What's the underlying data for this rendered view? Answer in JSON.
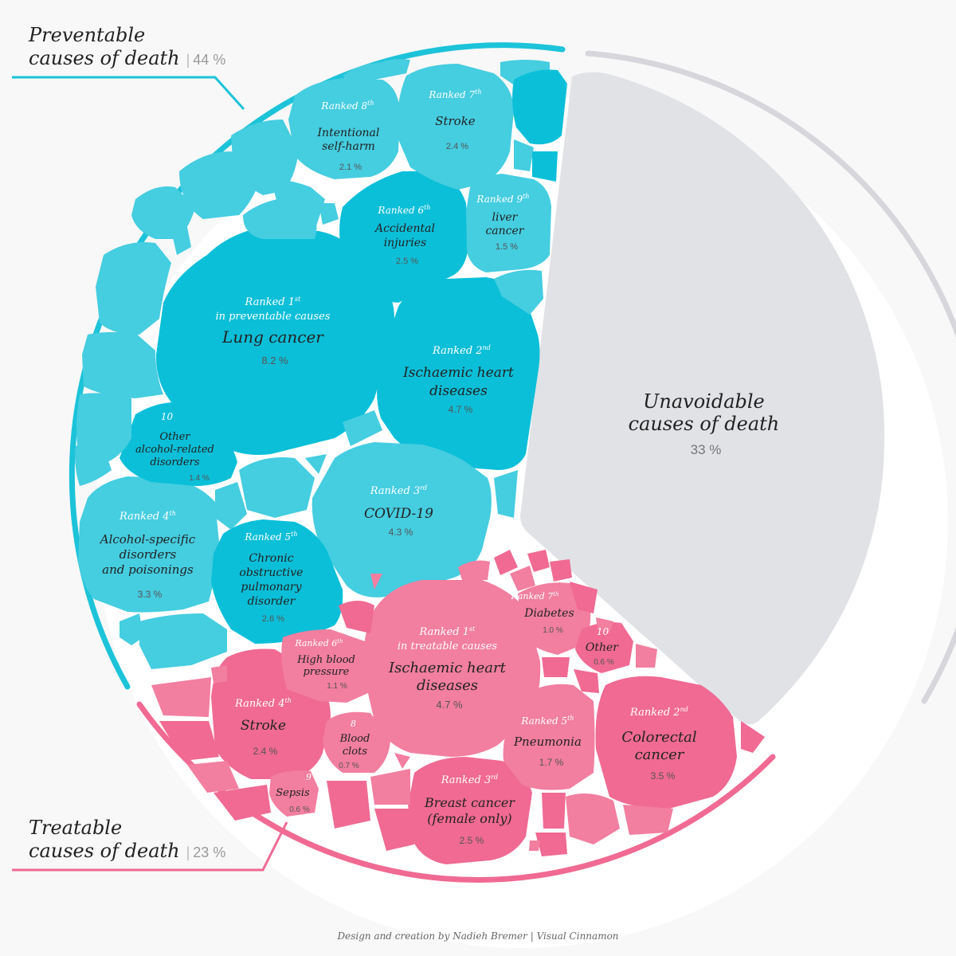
{
  "footer": {
    "credit": "Design and creation by Nadieh Bremer | Visual Cinnamon"
  },
  "groups": {
    "preventable": {
      "line1": "Preventable",
      "line2": "causes of death",
      "sep": "|",
      "pct": "44 %"
    },
    "treatable": {
      "line1": "Treatable",
      "line2": "causes of death",
      "sep": "|",
      "pct": "23 %"
    },
    "unavoidable": {
      "line1": "Unavoidable",
      "line2": "causes of death",
      "pct": "33 %"
    }
  },
  "colors": {
    "preventable": "#1cc3d9",
    "preventable_light": "#45cde0",
    "treatable": "#f06a93",
    "treatable_light": "#f27ea0",
    "unavoidable": "#e1e2e6",
    "ring_gray": "#d6d6dc",
    "background": "#f8f8f8"
  },
  "chart_data": {
    "type": "voronoi-treemap",
    "title": "",
    "groups": [
      {
        "name": "Preventable causes of death",
        "value": 44,
        "items": [
          {
            "rank": "Ranked 1st in preventable causes",
            "name": "Lung cancer",
            "value": 8.2
          },
          {
            "rank": "Ranked 2nd",
            "name": "Ischaemic heart diseases",
            "value": 4.7
          },
          {
            "rank": "Ranked 3rd",
            "name": "COVID-19",
            "value": 4.3
          },
          {
            "rank": "Ranked 4th",
            "name": "Alcohol-specific disorders and poisonings",
            "value": 3.3
          },
          {
            "rank": "Ranked 5th",
            "name": "Chronic obstructive pulmonary disorder",
            "value": 2.6
          },
          {
            "rank": "Ranked 6th",
            "name": "Accidental injuries",
            "value": 2.5
          },
          {
            "rank": "Ranked 7th",
            "name": "Stroke",
            "value": 2.4
          },
          {
            "rank": "Ranked 8th",
            "name": "Intentional self-harm",
            "value": 2.1
          },
          {
            "rank": "Ranked 9th",
            "name": "liver cancer",
            "value": 1.5
          },
          {
            "rank": "10",
            "name": "Other alcohol-related disorders",
            "value": 1.4
          }
        ]
      },
      {
        "name": "Treatable causes of death",
        "value": 23,
        "items": [
          {
            "rank": "Ranked 1st in treatable causes",
            "name": "Ischaemic heart diseases",
            "value": 4.7
          },
          {
            "rank": "Ranked 2nd",
            "name": "Colorectal cancer",
            "value": 3.5
          },
          {
            "rank": "Ranked 3rd",
            "name": "Breast cancer (female only)",
            "value": 2.5
          },
          {
            "rank": "Ranked 4th",
            "name": "Stroke",
            "value": 2.4
          },
          {
            "rank": "Ranked 5th",
            "name": "Pneumonia",
            "value": 1.7
          },
          {
            "rank": "Ranked 6th",
            "name": "High blood pressure",
            "value": 1.1
          },
          {
            "rank": "Ranked 7th",
            "name": "Diabetes",
            "value": 1.0
          },
          {
            "rank": "8",
            "name": "Blood clots",
            "value": 0.7
          },
          {
            "rank": "9",
            "name": "Sepsis",
            "value": 0.6
          },
          {
            "rank": "10",
            "name": "Other",
            "value": 0.6
          }
        ]
      },
      {
        "name": "Unavoidable causes of death",
        "value": 33
      }
    ]
  },
  "cells": {
    "p_lung": {
      "rank_a": "Ranked 1",
      "rank_sup": "st",
      "rank_b": "in preventable causes",
      "name1": "Lung cancer",
      "pct": "8.2 %"
    },
    "p_ihd": {
      "rank_a": "Ranked 2",
      "rank_sup": "nd",
      "name1": "Ischaemic heart",
      "name2": "diseases",
      "pct": "4.7 %"
    },
    "p_covid": {
      "rank_a": "Ranked 3",
      "rank_sup": "rd",
      "name1": "COVID-19",
      "pct": "4.3 %"
    },
    "p_alcohol": {
      "rank_a": "Ranked 4",
      "rank_sup": "th",
      "name1": "Alcohol-specific",
      "name2": "disorders",
      "name3": "and poisonings",
      "pct": "3.3 %"
    },
    "p_copd": {
      "rank_a": "Ranked 5",
      "rank_sup": "th",
      "name1": "Chronic",
      "name2": "obstructive",
      "name3": "pulmonary",
      "name4": "disorder",
      "pct": "2.6 %"
    },
    "p_accident": {
      "rank_a": "Ranked 6",
      "rank_sup": "th",
      "name1": "Accidental",
      "name2": "injuries",
      "pct": "2.5 %"
    },
    "p_stroke": {
      "rank_a": "Ranked 7",
      "rank_sup": "th",
      "name1": "Stroke",
      "pct": "2.4 %"
    },
    "p_selfharm": {
      "rank_a": "Ranked 8",
      "rank_sup": "th",
      "name1": "Intentional",
      "name2": "self-harm",
      "pct": "2.1 %"
    },
    "p_liver": {
      "rank_a": "Ranked 9",
      "rank_sup": "th",
      "name1": "liver",
      "name2": "cancer",
      "pct": "1.5 %"
    },
    "p_otheralc": {
      "rank_a": "10",
      "name1": "Other",
      "name2": "alcohol-related",
      "name3": "disorders",
      "pct": "1.4 %"
    },
    "t_ihd": {
      "rank_a": "Ranked 1",
      "rank_sup": "st",
      "rank_b": "in treatable causes",
      "name1": "Ischaemic heart",
      "name2": "diseases",
      "pct": "4.7 %"
    },
    "t_colorectal": {
      "rank_a": "Ranked 2",
      "rank_sup": "nd",
      "name1": "Colorectal",
      "name2": "cancer",
      "pct": "3.5 %"
    },
    "t_breast": {
      "rank_a": "Ranked 3",
      "rank_sup": "rd",
      "name1": "Breast cancer",
      "name2": "(female only)",
      "pct": "2.5 %"
    },
    "t_stroke": {
      "rank_a": "Ranked 4",
      "rank_sup": "th",
      "name1": "Stroke",
      "pct": "2.4 %"
    },
    "t_pneumonia": {
      "rank_a": "Ranked 5",
      "rank_sup": "th",
      "name1": "Pneumonia",
      "pct": "1.7 %"
    },
    "t_hbp": {
      "rank_a": "Ranked 6",
      "rank_sup": "th",
      "name1": "High blood",
      "name2": "pressure",
      "pct": "1.1 %"
    },
    "t_diabetes": {
      "rank_a": "Ranked 7",
      "rank_sup": "th",
      "name1": "Diabetes",
      "pct": "1.0 %"
    },
    "t_clots": {
      "rank_a": "8",
      "name1": "Blood",
      "name2": "clots",
      "pct": "0.7 %"
    },
    "t_sepsis": {
      "rank_a": "9",
      "name1": "Sepsis",
      "pct": "0.6 %"
    },
    "t_other": {
      "rank_a": "10",
      "name1": "Other",
      "pct": "0.6 %"
    }
  }
}
